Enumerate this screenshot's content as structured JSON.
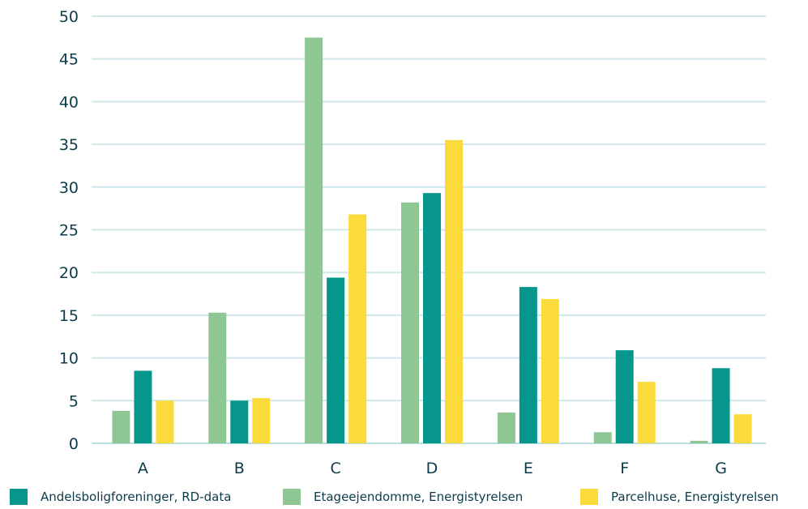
{
  "chart_data": {
    "type": "bar",
    "title": "",
    "xlabel": "",
    "ylabel": "",
    "categories": [
      "A",
      "B",
      "C",
      "D",
      "E",
      "F",
      "G"
    ],
    "ylim": [
      0,
      50
    ],
    "yticks": [
      "0",
      "5",
      "10",
      "15",
      "20",
      "25",
      "30",
      "35",
      "40",
      "45",
      "50"
    ],
    "grid": true,
    "legend_position": "bottom",
    "series": [
      {
        "name": "Etageejendomme, Energistyrelsen",
        "color": "#8fc794",
        "values": [
          3.8,
          15.3,
          47.5,
          28.2,
          3.6,
          1.3,
          0.3
        ]
      },
      {
        "name": "Andelsboligforeninger, RD-data",
        "color": "#07968c",
        "values": [
          8.5,
          5.0,
          19.4,
          29.3,
          18.3,
          10.9,
          8.8
        ]
      },
      {
        "name": "Parcelhuse, Energistyrelsen",
        "color": "#fbdb3c",
        "values": [
          5.0,
          5.3,
          26.8,
          35.5,
          16.9,
          7.2,
          3.4
        ]
      }
    ],
    "legend_order": [
      1,
      0,
      2
    ]
  }
}
